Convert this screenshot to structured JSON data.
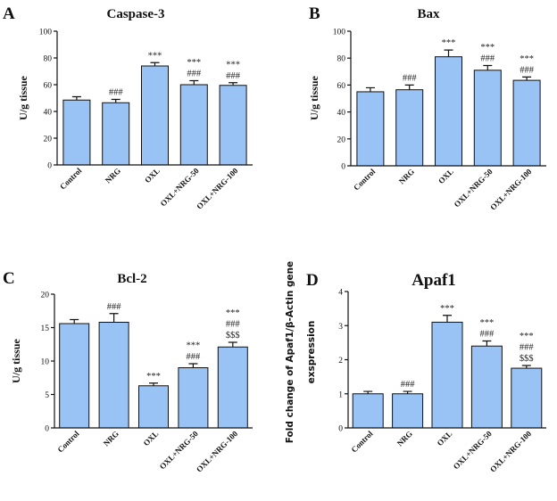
{
  "chart_data": [
    {
      "panel": "A",
      "type": "bar",
      "title": "Caspase-3",
      "xlabel": "",
      "ylabel": "U/g tissue",
      "ylim": [
        0,
        100
      ],
      "yticks": [
        0,
        20,
        40,
        60,
        80,
        100
      ],
      "categories": [
        "Control",
        "NRG",
        "OXL",
        "OXL+NRG-50",
        "OXL+NRG-100"
      ],
      "values": [
        48.5,
        46.5,
        74,
        60,
        59.5
      ],
      "errors": [
        2.5,
        2.5,
        2.5,
        3,
        2
      ],
      "annotations": [
        [],
        [
          "###"
        ],
        [
          "***"
        ],
        [
          "***",
          "###"
        ],
        [
          "***",
          "###"
        ]
      ]
    },
    {
      "panel": "B",
      "type": "bar",
      "title": "Bax",
      "xlabel": "",
      "ylabel": "U/g tissue",
      "ylim": [
        0,
        100
      ],
      "yticks": [
        0,
        20,
        40,
        60,
        80,
        100
      ],
      "categories": [
        "Control",
        "NRG",
        "OXL",
        "OXL+NRG-50",
        "OXL+NRG-100"
      ],
      "values": [
        55,
        56.5,
        81,
        71,
        63.5
      ],
      "errors": [
        3,
        3.5,
        5,
        3.5,
        2.5
      ],
      "annotations": [
        [],
        [
          "###"
        ],
        [
          "***"
        ],
        [
          "***",
          "###"
        ],
        [
          "***",
          "###"
        ]
      ]
    },
    {
      "panel": "C",
      "type": "bar",
      "title": "Bcl-2",
      "xlabel": "",
      "ylabel": "U/g tissue",
      "ylim": [
        0,
        20
      ],
      "yticks": [
        0,
        5,
        10,
        15,
        20
      ],
      "categories": [
        "Control",
        "NRG",
        "OXL",
        "OXL+NRG-50",
        "OXL+NRG-100"
      ],
      "values": [
        15.6,
        15.8,
        6.3,
        9,
        12.1
      ],
      "errors": [
        0.6,
        1.3,
        0.4,
        0.6,
        0.7
      ],
      "annotations": [
        [],
        [
          "###"
        ],
        [
          "***"
        ],
        [
          "***",
          "###"
        ],
        [
          "***",
          "###",
          "$$$"
        ]
      ]
    },
    {
      "panel": "D",
      "type": "bar",
      "title": "Apaf1",
      "xlabel": "",
      "ylabel": "Fold change of Apaf1/β-Actin gene",
      "ylabel2": "exspression",
      "ylim": [
        0,
        4
      ],
      "yticks": [
        0,
        1,
        2,
        3,
        4
      ],
      "categories": [
        "Control",
        "NRG",
        "OXL",
        "OXL+NRG-50",
        "OXL+NRG-100"
      ],
      "values": [
        1,
        1,
        3.1,
        2.4,
        1.75
      ],
      "errors": [
        0.07,
        0.07,
        0.2,
        0.15,
        0.08
      ],
      "annotations": [
        [],
        [
          "###"
        ],
        [
          "***"
        ],
        [
          "***",
          "###"
        ],
        [
          "***",
          "###",
          "$$$"
        ]
      ]
    }
  ]
}
